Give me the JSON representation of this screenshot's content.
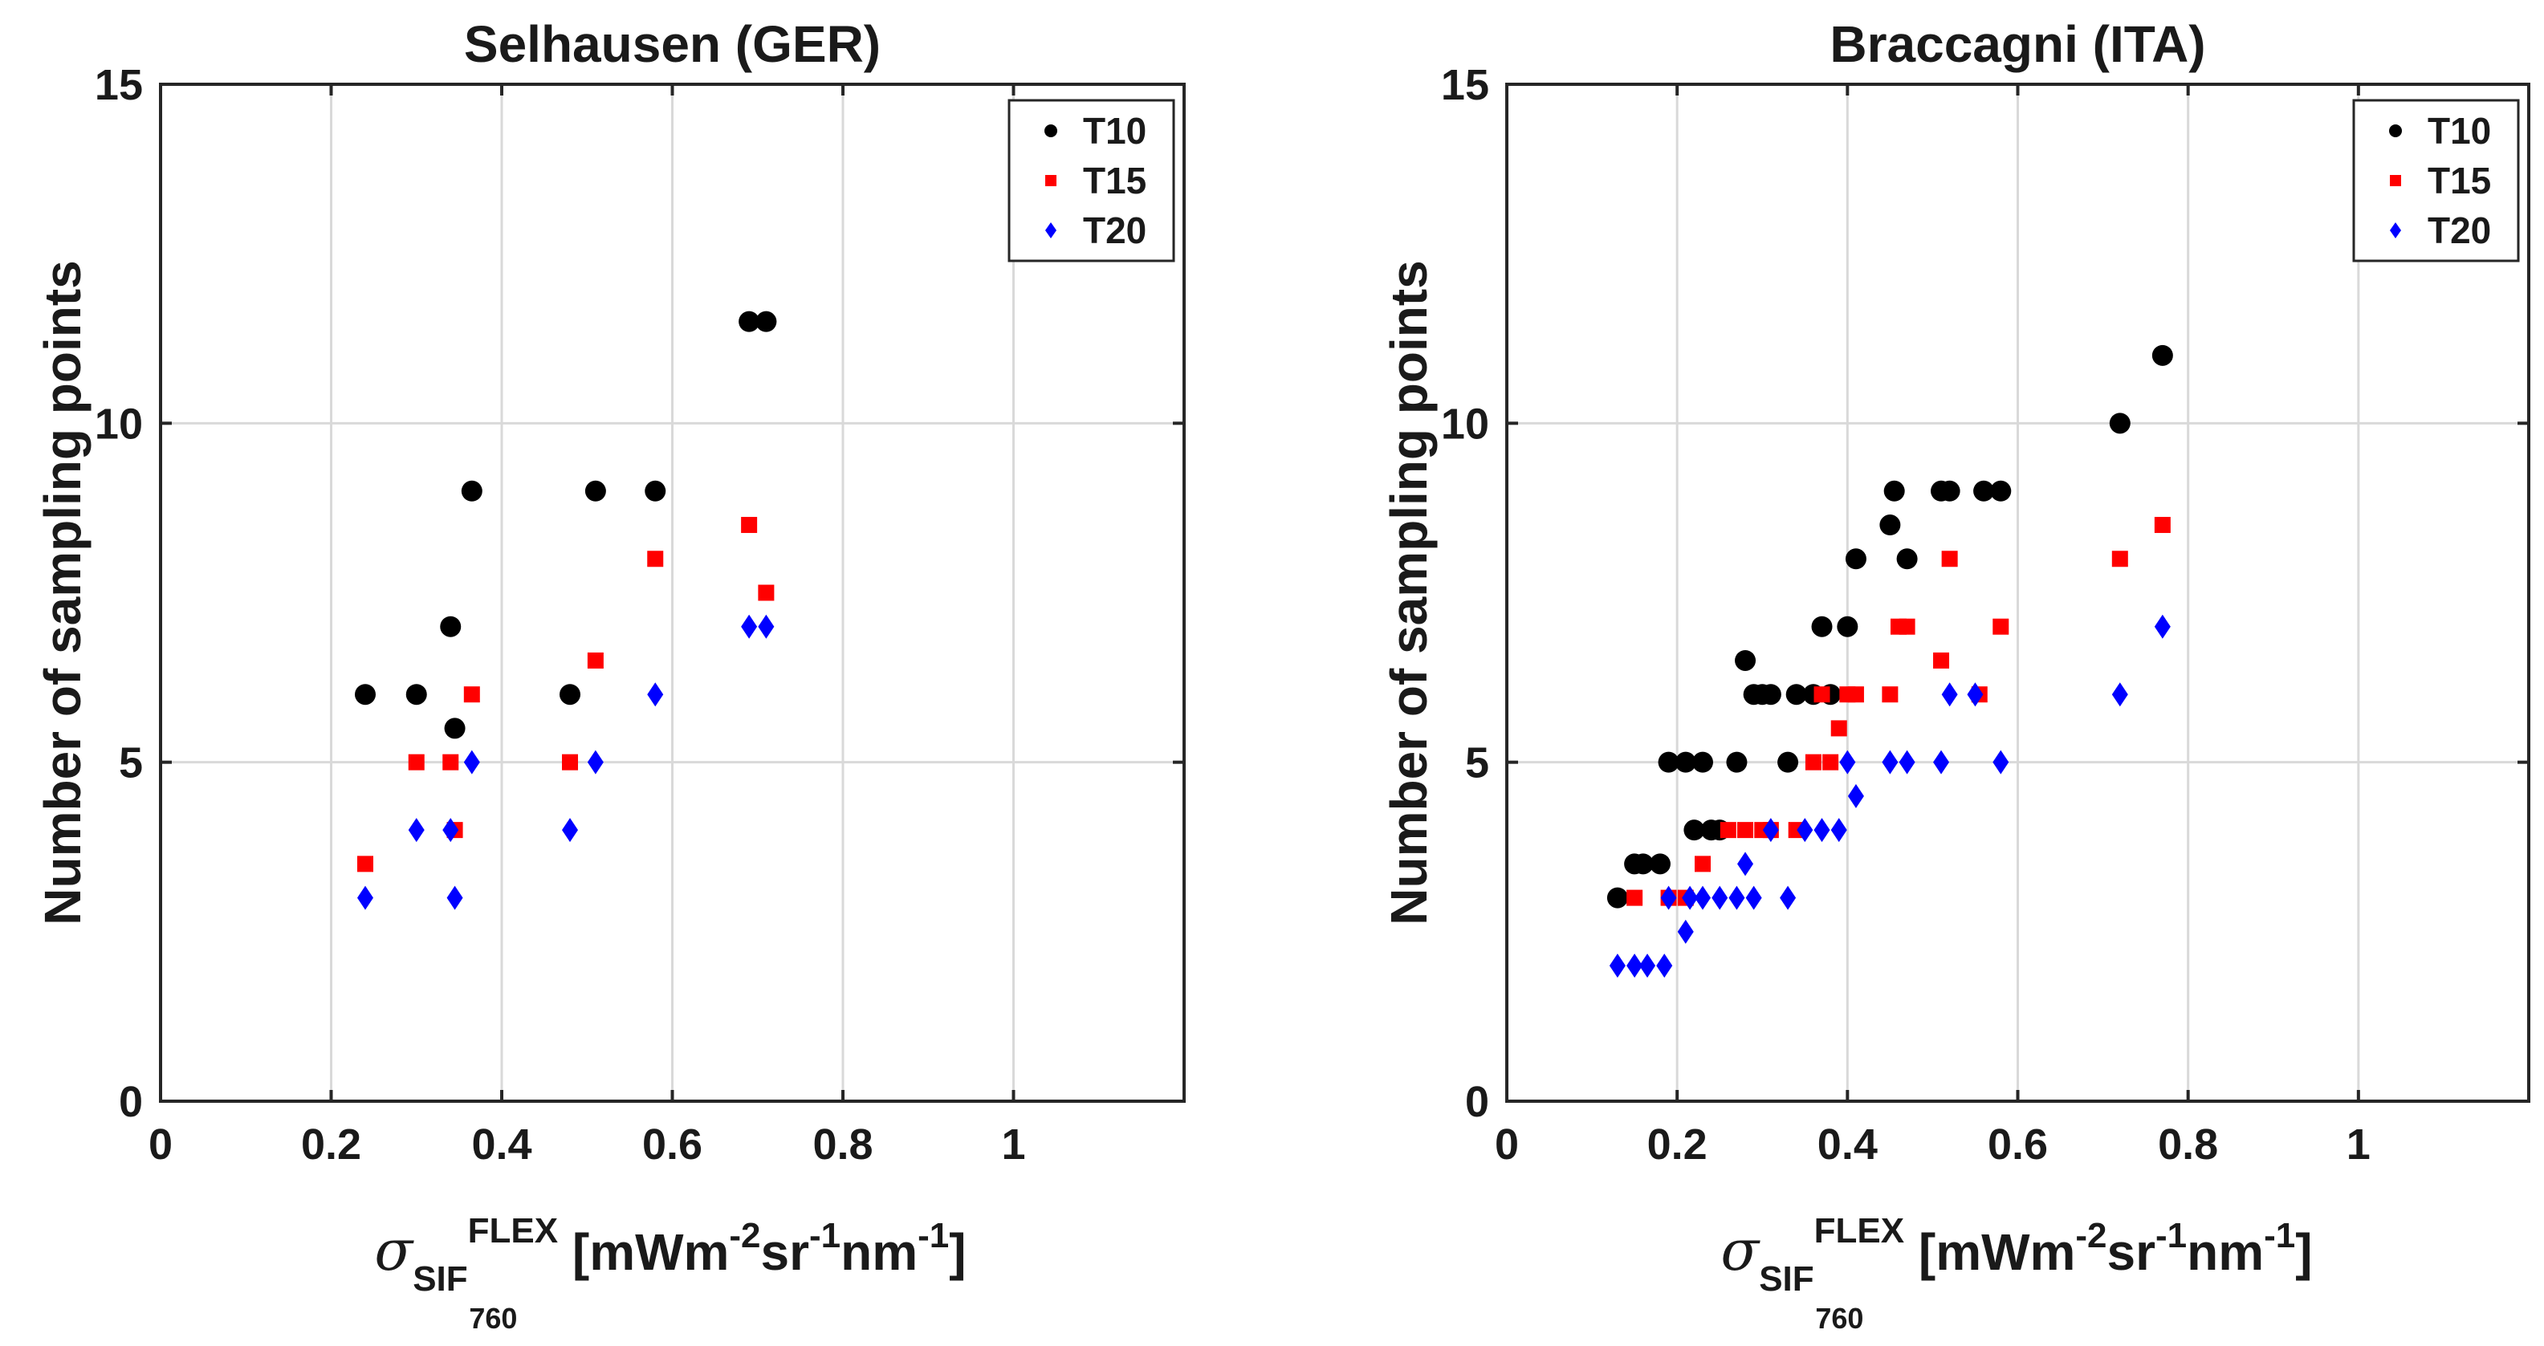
{
  "chart_data": [
    {
      "type": "scatter",
      "title": "Selhausen (GER)",
      "ylabel": "Number of sampling points",
      "xlabel": {
        "sigma": "σ",
        "sub": "SIF",
        "sub2": "760",
        "sup": "FLEX",
        "unit_a": " [mWm",
        "exp1": "-2",
        "unit_b": "sr",
        "exp2": "-1",
        "unit_c": "nm",
        "exp3": "-1",
        "unit_d": "]"
      },
      "xlim": [
        0,
        1.2
      ],
      "ylim": [
        0,
        15
      ],
      "xticks": [
        0,
        0.2,
        0.4,
        0.6,
        0.8,
        1
      ],
      "xtick_labels": [
        "0",
        "0.2",
        "0.4",
        "0.6",
        "0.8",
        "1"
      ],
      "yticks": [
        0,
        5,
        10,
        15
      ],
      "ytick_labels": [
        "0",
        "5",
        "10",
        "15"
      ],
      "grid": true,
      "legend_position": "top-right",
      "series": [
        {
          "name": "T10",
          "color": "#000000",
          "marker": "circle",
          "x": [
            0.24,
            0.3,
            0.34,
            0.345,
            0.365,
            0.48,
            0.51,
            0.58,
            0.69,
            0.71
          ],
          "y": [
            6,
            6,
            7,
            5.5,
            9,
            6,
            9,
            9,
            11.5,
            11.5
          ]
        },
        {
          "name": "T15",
          "color": "#ff0000",
          "marker": "square",
          "x": [
            0.24,
            0.3,
            0.34,
            0.345,
            0.365,
            0.48,
            0.51,
            0.58,
            0.69,
            0.71
          ],
          "y": [
            3.5,
            5,
            5,
            4,
            6,
            5,
            6.5,
            8,
            8.5,
            7.5
          ]
        },
        {
          "name": "T20",
          "color": "#0000ff",
          "marker": "diamond",
          "x": [
            0.24,
            0.3,
            0.34,
            0.345,
            0.365,
            0.48,
            0.51,
            0.58,
            0.69,
            0.71
          ],
          "y": [
            3,
            4,
            4,
            3,
            5,
            4,
            5,
            6,
            7,
            7
          ]
        }
      ]
    },
    {
      "type": "scatter",
      "title": "Braccagni (ITA)",
      "ylabel": "Number of sampling points",
      "xlabel": {
        "sigma": "σ",
        "sub": "SIF",
        "sub2": "760",
        "sup": "FLEX",
        "unit_a": " [mWm",
        "exp1": "-2",
        "unit_b": "sr",
        "exp2": "-1",
        "unit_c": "nm",
        "exp3": "-1",
        "unit_d": "]"
      },
      "xlim": [
        0,
        1.2
      ],
      "ylim": [
        0,
        15
      ],
      "xticks": [
        0,
        0.2,
        0.4,
        0.6,
        0.8,
        1
      ],
      "xtick_labels": [
        "0",
        "0.2",
        "0.4",
        "0.6",
        "0.8",
        "1"
      ],
      "yticks": [
        0,
        5,
        10,
        15
      ],
      "ytick_labels": [
        "0",
        "5",
        "10",
        "15"
      ],
      "grid": true,
      "legend_position": "top-right",
      "series": [
        {
          "name": "T10",
          "color": "#000000",
          "marker": "circle",
          "x": [
            0.13,
            0.15,
            0.16,
            0.18,
            0.19,
            0.21,
            0.22,
            0.23,
            0.24,
            0.25,
            0.27,
            0.28,
            0.29,
            0.3,
            0.31,
            0.33,
            0.34,
            0.36,
            0.37,
            0.38,
            0.4,
            0.41,
            0.45,
            0.455,
            0.47,
            0.51,
            0.52,
            0.56,
            0.58,
            0.72,
            0.77
          ],
          "y": [
            3,
            3.5,
            3.5,
            3.5,
            5,
            5,
            4,
            5,
            4,
            4,
            5,
            6.5,
            6,
            6,
            6,
            5,
            6,
            6,
            7,
            6,
            7,
            8,
            8.5,
            9,
            8,
            9,
            9,
            9,
            9,
            10,
            11
          ]
        },
        {
          "name": "T15",
          "color": "#ff0000",
          "marker": "square",
          "x": [
            0.15,
            0.19,
            0.21,
            0.23,
            0.26,
            0.28,
            0.3,
            0.31,
            0.34,
            0.36,
            0.37,
            0.38,
            0.39,
            0.4,
            0.41,
            0.45,
            0.46,
            0.47,
            0.51,
            0.52,
            0.555,
            0.58,
            0.72,
            0.77
          ],
          "y": [
            3,
            3,
            3,
            3.5,
            4,
            4,
            4,
            4,
            4,
            5,
            6,
            5,
            5.5,
            6,
            6,
            6,
            7,
            7,
            6.5,
            8,
            6,
            7,
            8,
            8.5
          ]
        },
        {
          "name": "T20",
          "color": "#0000ff",
          "marker": "diamond",
          "x": [
            0.13,
            0.15,
            0.165,
            0.185,
            0.19,
            0.21,
            0.215,
            0.23,
            0.25,
            0.27,
            0.28,
            0.29,
            0.31,
            0.33,
            0.35,
            0.37,
            0.39,
            0.4,
            0.41,
            0.45,
            0.47,
            0.51,
            0.52,
            0.55,
            0.58,
            0.72,
            0.77
          ],
          "y": [
            2,
            2,
            2,
            2,
            3,
            2.5,
            3,
            3,
            3,
            3,
            3.5,
            3,
            4,
            3,
            4,
            4,
            4,
            5,
            4.5,
            5,
            5,
            5,
            6,
            6,
            5,
            6,
            7
          ]
        }
      ]
    }
  ]
}
